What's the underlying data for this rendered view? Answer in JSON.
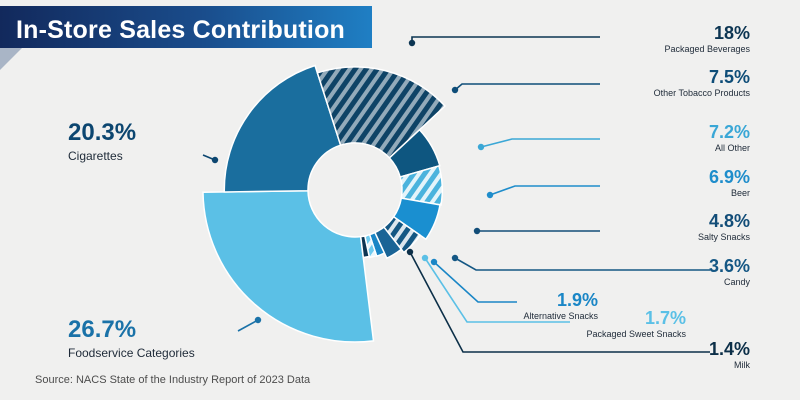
{
  "title": "In-Store Sales Contribution",
  "source": "Source: NACS State of the Industry Report of 2023 Data",
  "chart_data": {
    "type": "pie",
    "title": "In-Store Sales Contribution",
    "unit": "%",
    "slices": [
      {
        "label": "Foodservice Categories",
        "value": 26.7,
        "value_text": "26.7%",
        "color": "#5bc0e6",
        "label_color": "#1a72a8",
        "pattern": false,
        "side": "left"
      },
      {
        "label": "Cigarettes",
        "value": 20.3,
        "value_text": "20.3%",
        "color": "#1a6e9e",
        "label_color": "#0c4670",
        "pattern": false,
        "side": "left"
      },
      {
        "label": "Packaged Beverages",
        "value": 18,
        "value_text": "18%",
        "color": "#0e4366",
        "label_color": "#0c3552",
        "pattern": true,
        "side": "right"
      },
      {
        "label": "Other Tobacco Products",
        "value": 7.5,
        "value_text": "7.5%",
        "color": "#0e5680",
        "label_color": "#0e4d78",
        "pattern": false,
        "side": "right"
      },
      {
        "label": "All Other",
        "value": 7.2,
        "value_text": "7.2%",
        "color": "#4ab3dd",
        "label_color": "#3aa7d6",
        "pattern": true,
        "side": "right"
      },
      {
        "label": "Beer",
        "value": 6.9,
        "value_text": "6.9%",
        "color": "#1a8fd0",
        "label_color": "#1f8dcb",
        "pattern": false,
        "side": "right"
      },
      {
        "label": "Salty Snacks",
        "value": 4.8,
        "value_text": "4.8%",
        "color": "#145783",
        "label_color": "#124d78",
        "pattern": true,
        "side": "right"
      },
      {
        "label": "Candy",
        "value": 3.6,
        "value_text": "3.6%",
        "color": "#1a6496",
        "label_color": "#145784",
        "pattern": false,
        "side": "right"
      },
      {
        "label": "Alternative Snacks",
        "value": 1.9,
        "value_text": "1.9%",
        "color": "#1a86c6",
        "label_color": "#1a86c6",
        "pattern": false,
        "side": "right"
      },
      {
        "label": "Packaged Sweet Snacks",
        "value": 1.7,
        "value_text": "1.7%",
        "color": "#6fcbef",
        "label_color": "#5bc0e6",
        "pattern": true,
        "side": "right"
      },
      {
        "label": "Milk",
        "value": 1.4,
        "value_text": "1.4%",
        "color": "#0c3552",
        "label_color": "#0c2f48",
        "pattern": false,
        "side": "right"
      }
    ]
  }
}
